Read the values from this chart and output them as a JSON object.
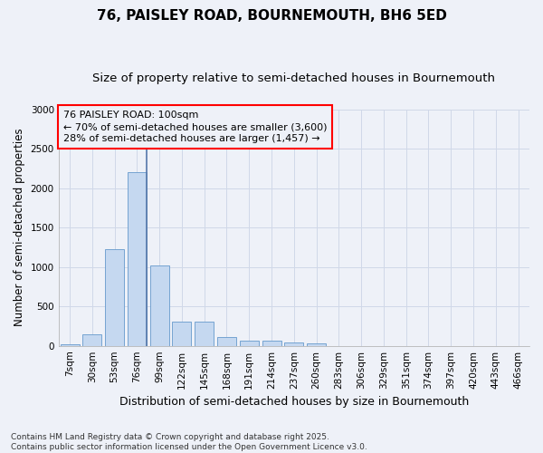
{
  "title": "76, PAISLEY ROAD, BOURNEMOUTH, BH6 5ED",
  "subtitle": "Size of property relative to semi-detached houses in Bournemouth",
  "xlabel": "Distribution of semi-detached houses by size in Bournemouth",
  "ylabel": "Number of semi-detached properties",
  "footnote1": "Contains HM Land Registry data © Crown copyright and database right 2025.",
  "footnote2": "Contains public sector information licensed under the Open Government Licence v3.0.",
  "categories": [
    "7sqm",
    "30sqm",
    "53sqm",
    "76sqm",
    "99sqm",
    "122sqm",
    "145sqm",
    "168sqm",
    "191sqm",
    "214sqm",
    "237sqm",
    "260sqm",
    "283sqm",
    "306sqm",
    "329sqm",
    "351sqm",
    "374sqm",
    "397sqm",
    "420sqm",
    "443sqm",
    "466sqm"
  ],
  "values": [
    15,
    150,
    1230,
    2200,
    1020,
    310,
    310,
    110,
    65,
    65,
    45,
    30,
    0,
    0,
    0,
    0,
    0,
    0,
    0,
    0,
    0
  ],
  "bar_color": "#c5d8f0",
  "bar_edge_color": "#6699cc",
  "highlight_bar_index": 3,
  "highlight_line_color": "#5577aa",
  "annotation_line1": "76 PAISLEY ROAD: 100sqm",
  "annotation_line2": "← 70% of semi-detached houses are smaller (3,600)",
  "annotation_line3": "28% of semi-detached houses are larger (1,457) →",
  "ylim": [
    0,
    3000
  ],
  "yticks": [
    0,
    500,
    1000,
    1500,
    2000,
    2500,
    3000
  ],
  "grid_color": "#d0d8e8",
  "background_color": "#eef1f8",
  "title_fontsize": 11,
  "subtitle_fontsize": 9.5,
  "xlabel_fontsize": 9,
  "ylabel_fontsize": 8.5,
  "tick_fontsize": 7.5,
  "footnote_fontsize": 6.5,
  "annotation_fontsize": 8
}
